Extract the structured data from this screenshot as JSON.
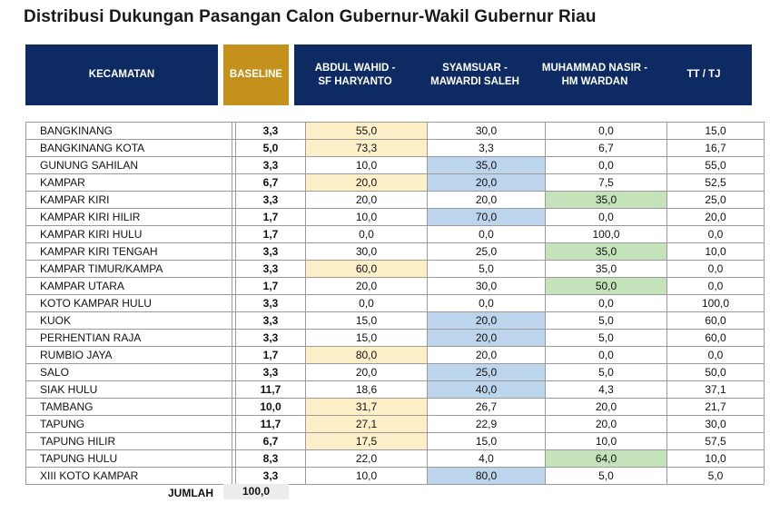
{
  "title": "Distribusi Dukungan Pasangan Calon Gubernur-Wakil Gubernur Riau",
  "headers": {
    "kecamatan": "KECAMATAN",
    "baseline": "BASELINE",
    "c1_line1": "ABDUL WAHID -",
    "c1_line2": "SF HARYANTO",
    "c2_line1": "SYAMSUAR -",
    "c2_line2": "MAWARDI SALEH",
    "c3_line1": "MUHAMMAD NASIR -",
    "c3_line2": "HM WARDAN",
    "c4": "TT / TJ"
  },
  "colors": {
    "header_bg": "#0d2a63",
    "baseline_header_bg": "#c4911c",
    "highlight_c1": "#fdefc8",
    "highlight_c2": "#bcd4ec",
    "highlight_c3": "#c5e3bb"
  },
  "rows": [
    {
      "kecamatan": "BANGKINANG",
      "baseline": "3,3",
      "c1": "55,0",
      "c2": "30,0",
      "c3": "0,0",
      "c4": "15,0",
      "hl": "c1"
    },
    {
      "kecamatan": "BANGKINANG KOTA",
      "baseline": "5,0",
      "c1": "73,3",
      "c2": "3,3",
      "c3": "6,7",
      "c4": "16,7",
      "hl": "c1"
    },
    {
      "kecamatan": "GUNUNG SAHILAN",
      "baseline": "3,3",
      "c1": "10,0",
      "c2": "35,0",
      "c3": "0,0",
      "c4": "55,0",
      "hl": "c2"
    },
    {
      "kecamatan": "KAMPAR",
      "baseline": "6,7",
      "c1": "20,0",
      "c2": "20,0",
      "c3": "7,5",
      "c4": "52,5",
      "hl": "c1c2"
    },
    {
      "kecamatan": "KAMPAR KIRI",
      "baseline": "3,3",
      "c1": "20,0",
      "c2": "20,0",
      "c3": "35,0",
      "c4": "25,0",
      "hl": "c3"
    },
    {
      "kecamatan": "KAMPAR KIRI HILIR",
      "baseline": "1,7",
      "c1": "10,0",
      "c2": "70,0",
      "c3": "0,0",
      "c4": "20,0",
      "hl": "c2"
    },
    {
      "kecamatan": "KAMPAR KIRI HULU",
      "baseline": "1,7",
      "c1": "0,0",
      "c2": "0,0",
      "c3": "100,0",
      "c4": "0,0",
      "hl": ""
    },
    {
      "kecamatan": "KAMPAR KIRI TENGAH",
      "baseline": "3,3",
      "c1": "30,0",
      "c2": "25,0",
      "c3": "35,0",
      "c4": "10,0",
      "hl": "c3"
    },
    {
      "kecamatan": "KAMPAR TIMUR/KAMPA",
      "baseline": "3,3",
      "c1": "60,0",
      "c2": "5,0",
      "c3": "35,0",
      "c4": "0,0",
      "hl": "c1"
    },
    {
      "kecamatan": "KAMPAR UTARA",
      "baseline": "1,7",
      "c1": "20,0",
      "c2": "30,0",
      "c3": "50,0",
      "c4": "0,0",
      "hl": "c3"
    },
    {
      "kecamatan": "KOTO KAMPAR HULU",
      "baseline": "3,3",
      "c1": "0,0",
      "c2": "0,0",
      "c3": "0,0",
      "c4": "100,0",
      "hl": ""
    },
    {
      "kecamatan": "KUOK",
      "baseline": "3,3",
      "c1": "15,0",
      "c2": "20,0",
      "c3": "5,0",
      "c4": "60,0",
      "hl": "c2"
    },
    {
      "kecamatan": "PERHENTIAN RAJA",
      "baseline": "3,3",
      "c1": "15,0",
      "c2": "20,0",
      "c3": "5,0",
      "c4": "60,0",
      "hl": "c2"
    },
    {
      "kecamatan": "RUMBIO JAYA",
      "baseline": "1,7",
      "c1": "80,0",
      "c2": "20,0",
      "c3": "0,0",
      "c4": "0,0",
      "hl": "c1"
    },
    {
      "kecamatan": "SALO",
      "baseline": "3,3",
      "c1": "20,0",
      "c2": "25,0",
      "c3": "5,0",
      "c4": "50,0",
      "hl": "c2"
    },
    {
      "kecamatan": "SIAK HULU",
      "baseline": "11,7",
      "c1": "18,6",
      "c2": "40,0",
      "c3": "4,3",
      "c4": "37,1",
      "hl": "c2"
    },
    {
      "kecamatan": "TAMBANG",
      "baseline": "10,0",
      "c1": "31,7",
      "c2": "26,7",
      "c3": "20,0",
      "c4": "21,7",
      "hl": "c1"
    },
    {
      "kecamatan": "TAPUNG",
      "baseline": "11,7",
      "c1": "27,1",
      "c2": "22,9",
      "c3": "20,0",
      "c4": "30,0",
      "hl": "c1"
    },
    {
      "kecamatan": "TAPUNG HILIR",
      "baseline": "6,7",
      "c1": "17,5",
      "c2": "15,0",
      "c3": "10,0",
      "c4": "57,5",
      "hl": "c1"
    },
    {
      "kecamatan": "TAPUNG HULU",
      "baseline": "8,3",
      "c1": "22,0",
      "c2": "4,0",
      "c3": "64,0",
      "c4": "10,0",
      "hl": "c3"
    },
    {
      "kecamatan": "XIII KOTO KAMPAR",
      "baseline": "3,3",
      "c1": "10,0",
      "c2": "80,0",
      "c3": "5,0",
      "c4": "5,0",
      "hl": "c2"
    }
  ],
  "total": {
    "label": "JUMLAH",
    "value": "100,0"
  }
}
